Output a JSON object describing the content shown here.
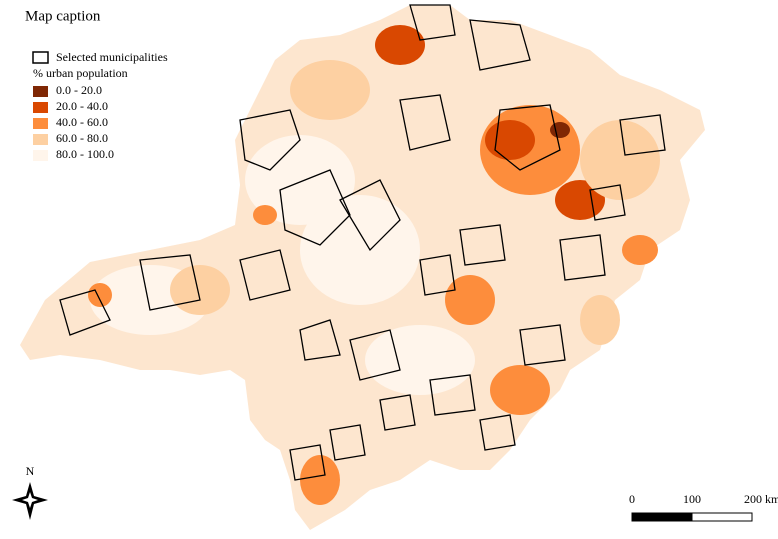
{
  "caption_title": "Map caption",
  "selected_label": "Selected municipalities",
  "legend_title": "% urban population",
  "legend": [
    {
      "label": "0.0 - 20.0",
      "color": "#7f2704"
    },
    {
      "label": "20.0 - 40.0",
      "color": "#d94801"
    },
    {
      "label": "40.0 - 60.0",
      "color": "#fd8d3c"
    },
    {
      "label": "60.0 - 80.0",
      "color": "#fdd0a2"
    },
    {
      "label": "80.0 - 100.0",
      "color": "#fff5eb"
    }
  ],
  "north": "N",
  "scale": {
    "labels": [
      "0",
      "100",
      "200 km"
    ]
  }
}
